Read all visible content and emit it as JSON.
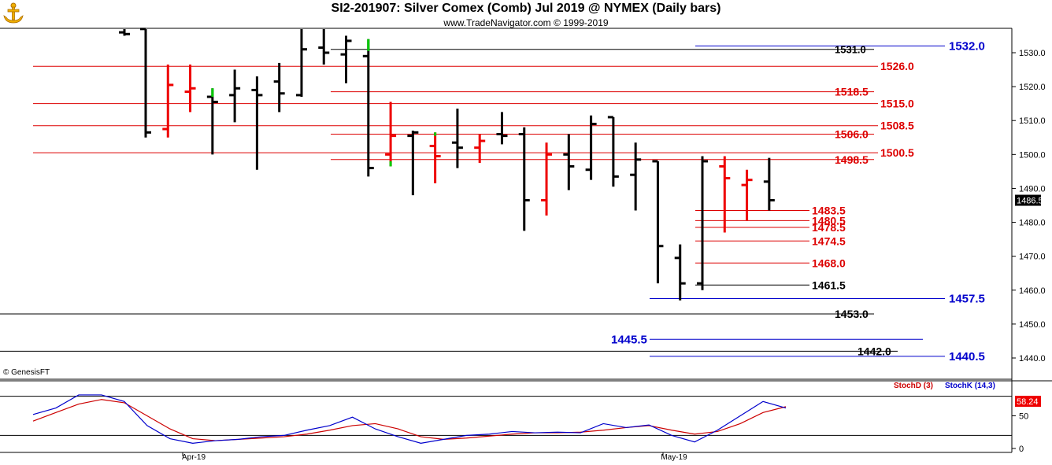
{
  "header": {
    "title": "SI2-201907:  Silver Comex (Comb) Jul 2019 @ NYMEX  (Daily bars)",
    "subtitle": "www.TradeNavigator.com © 1999-2019",
    "copyright": "© GenesisFT",
    "logo_icon": "anchor-logo-icon"
  },
  "colors": {
    "up_bar": "#ee0000",
    "down_bar": "#000000",
    "highlight_bar": "#00cc00",
    "blue_level": "#0000cc",
    "red_level": "#dd0000",
    "black_level": "#000000",
    "stoch_d": "#cc0000",
    "stoch_k": "#0000cc",
    "last_price_bg": "#000000",
    "stoch_value_bg": "#ee0000"
  },
  "chart_data": [
    {
      "type": "ohlc",
      "y_ticks": [
        1440.0,
        1450.0,
        1460.0,
        1470.0,
        1480.0,
        1490.0,
        1500.0,
        1510.0,
        1520.0,
        1530.0
      ],
      "x_ticks": [
        "Apr-19",
        "May-19"
      ],
      "last_price": "1486.5",
      "ylim": [
        1435.0,
        1537.0
      ],
      "bars": [
        {
          "h": 1537.0,
          "l": 1535.0,
          "o": 1536.0,
          "c": 1535.5,
          "color": "down"
        },
        {
          "h": 1537.0,
          "l": 1505.0,
          "o": 1537.0,
          "c": 1506.5,
          "color": "down"
        },
        {
          "h": 1526.5,
          "l": 1505.0,
          "o": 1507.5,
          "c": 1520.5,
          "color": "up"
        },
        {
          "h": 1526.5,
          "l": 1512.5,
          "o": 1518.5,
          "c": 1519.5,
          "color": "up"
        },
        {
          "h": 1519.5,
          "l": 1500.0,
          "o": 1517.0,
          "c": 1515.5,
          "color": "down"
        },
        {
          "h": 1525.0,
          "l": 1509.5,
          "o": 1517.5,
          "c": 1519.5,
          "color": "down"
        },
        {
          "h": 1523.0,
          "l": 1495.5,
          "o": 1519.0,
          "c": 1517.5,
          "color": "down"
        },
        {
          "h": 1527.0,
          "l": 1512.5,
          "o": 1521.5,
          "c": 1518.0,
          "color": "down"
        },
        {
          "h": 1537.0,
          "l": 1517.0,
          "o": 1517.5,
          "c": 1531.0,
          "color": "down"
        },
        {
          "h": 1537.0,
          "l": 1526.5,
          "o": 1531.5,
          "c": 1530.0,
          "color": "down"
        },
        {
          "h": 1535.0,
          "l": 1521.0,
          "o": 1529.5,
          "c": 1533.5,
          "color": "down"
        },
        {
          "h": 1534.0,
          "l": 1493.5,
          "o": 1529.0,
          "c": 1496.0,
          "color": "down"
        },
        {
          "h": 1515.5,
          "l": 1496.5,
          "o": 1500.0,
          "c": 1505.5,
          "color": "up"
        },
        {
          "h": 1507.0,
          "l": 1488.0,
          "o": 1505.5,
          "c": 1506.5,
          "color": "down"
        },
        {
          "h": 1506.5,
          "l": 1491.5,
          "o": 1502.5,
          "c": 1499.5,
          "color": "up"
        },
        {
          "h": 1513.5,
          "l": 1496.0,
          "o": 1503.5,
          "c": 1502.0,
          "color": "down"
        },
        {
          "h": 1506.0,
          "l": 1497.5,
          "o": 1502.0,
          "c": 1504.0,
          "color": "up"
        },
        {
          "h": 1512.5,
          "l": 1503.0,
          "o": 1506.0,
          "c": 1505.5,
          "color": "down"
        },
        {
          "h": 1508.0,
          "l": 1477.5,
          "o": 1506.0,
          "c": 1486.5,
          "color": "down"
        },
        {
          "h": 1503.5,
          "l": 1482.0,
          "o": 1486.5,
          "c": 1500.0,
          "color": "up"
        },
        {
          "h": 1506.0,
          "l": 1489.5,
          "o": 1500.0,
          "c": 1496.5,
          "color": "down"
        },
        {
          "h": 1511.5,
          "l": 1492.5,
          "o": 1495.5,
          "c": 1509.0,
          "color": "down"
        },
        {
          "h": 1511.0,
          "l": 1490.5,
          "o": 1511.0,
          "c": 1493.5,
          "color": "down"
        },
        {
          "h": 1503.5,
          "l": 1483.5,
          "o": 1494.0,
          "c": 1498.5,
          "color": "down"
        },
        {
          "h": 1498.0,
          "l": 1462.0,
          "o": 1498.0,
          "c": 1473.0,
          "color": "down"
        },
        {
          "h": 1473.5,
          "l": 1457.0,
          "o": 1469.5,
          "c": 1462.0,
          "color": "down"
        },
        {
          "h": 1499.5,
          "l": 1460.0,
          "o": 1462.0,
          "c": 1498.0,
          "color": "down"
        },
        {
          "h": 1499.5,
          "l": 1477.0,
          "o": 1496.5,
          "c": 1493.0,
          "color": "up"
        },
        {
          "h": 1495.5,
          "l": 1480.5,
          "o": 1491.0,
          "c": 1492.5,
          "color": "up"
        },
        {
          "h": 1499.0,
          "l": 1483.5,
          "o": 1492.0,
          "c": 1486.5,
          "color": "down"
        }
      ],
      "levels": [
        {
          "value": 1532.0,
          "label": "1532.0",
          "color": "blue"
        },
        {
          "value": 1531.0,
          "label": "1531.0",
          "color": "black"
        },
        {
          "value": 1526.0,
          "label": "1526.0",
          "color": "red"
        },
        {
          "value": 1518.5,
          "label": "1518.5",
          "color": "red"
        },
        {
          "value": 1515.0,
          "label": "1515.0",
          "color": "red"
        },
        {
          "value": 1508.5,
          "label": "1508.5",
          "color": "red"
        },
        {
          "value": 1506.0,
          "label": "1506.0",
          "color": "red"
        },
        {
          "value": 1500.5,
          "label": "1500.5",
          "color": "red"
        },
        {
          "value": 1498.5,
          "label": "1498.5",
          "color": "red"
        },
        {
          "value": 1483.5,
          "label": "1483.5",
          "color": "red"
        },
        {
          "value": 1480.5,
          "label": "1480.5",
          "color": "red"
        },
        {
          "value": 1478.5,
          "label": "1478.5",
          "color": "red"
        },
        {
          "value": 1474.5,
          "label": "1474.5",
          "color": "red"
        },
        {
          "value": 1468.0,
          "label": "1468.0",
          "color": "red"
        },
        {
          "value": 1461.5,
          "label": "1461.5",
          "color": "black"
        },
        {
          "value": 1457.5,
          "label": "1457.5",
          "color": "blue"
        },
        {
          "value": 1453.0,
          "label": "1453.0",
          "color": "black"
        },
        {
          "value": 1445.5,
          "label": "1445.5",
          "color": "blue"
        },
        {
          "value": 1442.0,
          "label": "1442.0",
          "color": "black"
        },
        {
          "value": 1440.5,
          "label": "1440.5",
          "color": "blue"
        }
      ]
    },
    {
      "type": "line",
      "y_ticks": [
        0,
        50
      ],
      "ylim": [
        0,
        100
      ],
      "last_value": "58.24",
      "series": [
        {
          "name": "StochD (3)",
          "color": "stoch_d",
          "values": [
            42,
            55,
            68,
            75,
            70,
            50,
            30,
            15,
            12,
            14,
            16,
            18,
            22,
            28,
            35,
            38,
            30,
            18,
            14,
            16,
            19,
            22,
            24,
            24,
            25,
            28,
            32,
            35,
            28,
            22,
            26,
            38,
            55,
            64
          ]
        },
        {
          "name": "StochK (14,3)",
          "color": "stoch_k",
          "values": [
            52,
            62,
            82,
            82,
            72,
            35,
            15,
            8,
            12,
            14,
            18,
            20,
            28,
            35,
            48,
            30,
            18,
            8,
            14,
            20,
            22,
            26,
            24,
            25,
            24,
            38,
            32,
            36,
            20,
            10,
            28,
            50,
            72,
            62
          ]
        }
      ]
    }
  ]
}
